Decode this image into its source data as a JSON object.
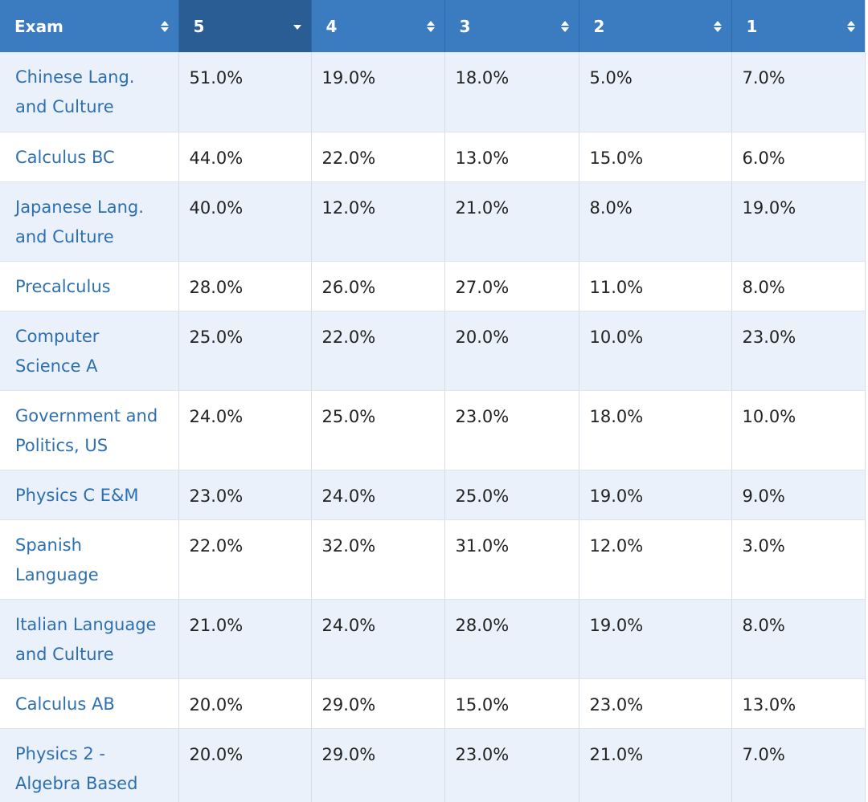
{
  "table": {
    "headers": [
      {
        "label": "Exam",
        "sort": "none"
      },
      {
        "label": "5",
        "sort": "desc"
      },
      {
        "label": "4",
        "sort": "none"
      },
      {
        "label": "3",
        "sort": "none"
      },
      {
        "label": "2",
        "sort": "none"
      },
      {
        "label": "1",
        "sort": "none"
      }
    ],
    "rows": [
      {
        "exam": "Chinese Lang. and Culture",
        "s5": "51.0%",
        "s4": "19.0%",
        "s3": "18.0%",
        "s2": "5.0%",
        "s1": "7.0%"
      },
      {
        "exam": "Calculus BC",
        "s5": "44.0%",
        "s4": "22.0%",
        "s3": "13.0%",
        "s2": "15.0%",
        "s1": "6.0%"
      },
      {
        "exam": "Japanese Lang. and Culture",
        "s5": "40.0%",
        "s4": "12.0%",
        "s3": "21.0%",
        "s2": "8.0%",
        "s1": "19.0%"
      },
      {
        "exam": "Precalculus",
        "s5": "28.0%",
        "s4": "26.0%",
        "s3": "27.0%",
        "s2": "11.0%",
        "s1": "8.0%"
      },
      {
        "exam": "Computer Science A",
        "s5": "25.0%",
        "s4": "22.0%",
        "s3": "20.0%",
        "s2": "10.0%",
        "s1": "23.0%"
      },
      {
        "exam": "Government and Politics, US",
        "s5": "24.0%",
        "s4": "25.0%",
        "s3": "23.0%",
        "s2": "18.0%",
        "s1": "10.0%"
      },
      {
        "exam": "Physics C E&M",
        "s5": "23.0%",
        "s4": "24.0%",
        "s3": "25.0%",
        "s2": "19.0%",
        "s1": "9.0%"
      },
      {
        "exam": "Spanish Language",
        "s5": "22.0%",
        "s4": "32.0%",
        "s3": "31.0%",
        "s2": "12.0%",
        "s1": "3.0%"
      },
      {
        "exam": "Italian Language and Culture",
        "s5": "21.0%",
        "s4": "24.0%",
        "s3": "28.0%",
        "s2": "19.0%",
        "s1": "8.0%"
      },
      {
        "exam": "Calculus AB",
        "s5": "20.0%",
        "s4": "29.0%",
        "s3": "15.0%",
        "s2": "23.0%",
        "s1": "13.0%"
      },
      {
        "exam": "Physics 2 - Algebra Based",
        "s5": "20.0%",
        "s4": "29.0%",
        "s3": "23.0%",
        "s2": "21.0%",
        "s1": "7.0%"
      }
    ]
  },
  "colors": {
    "header_bg": "#3a7cbf",
    "header_active_bg": "#2a5d94",
    "link": "#2d6fb0",
    "stripe": "#eaf1fa"
  },
  "icons": {
    "sort_both": "sort-icon",
    "sort_desc": "sort-desc-icon"
  }
}
